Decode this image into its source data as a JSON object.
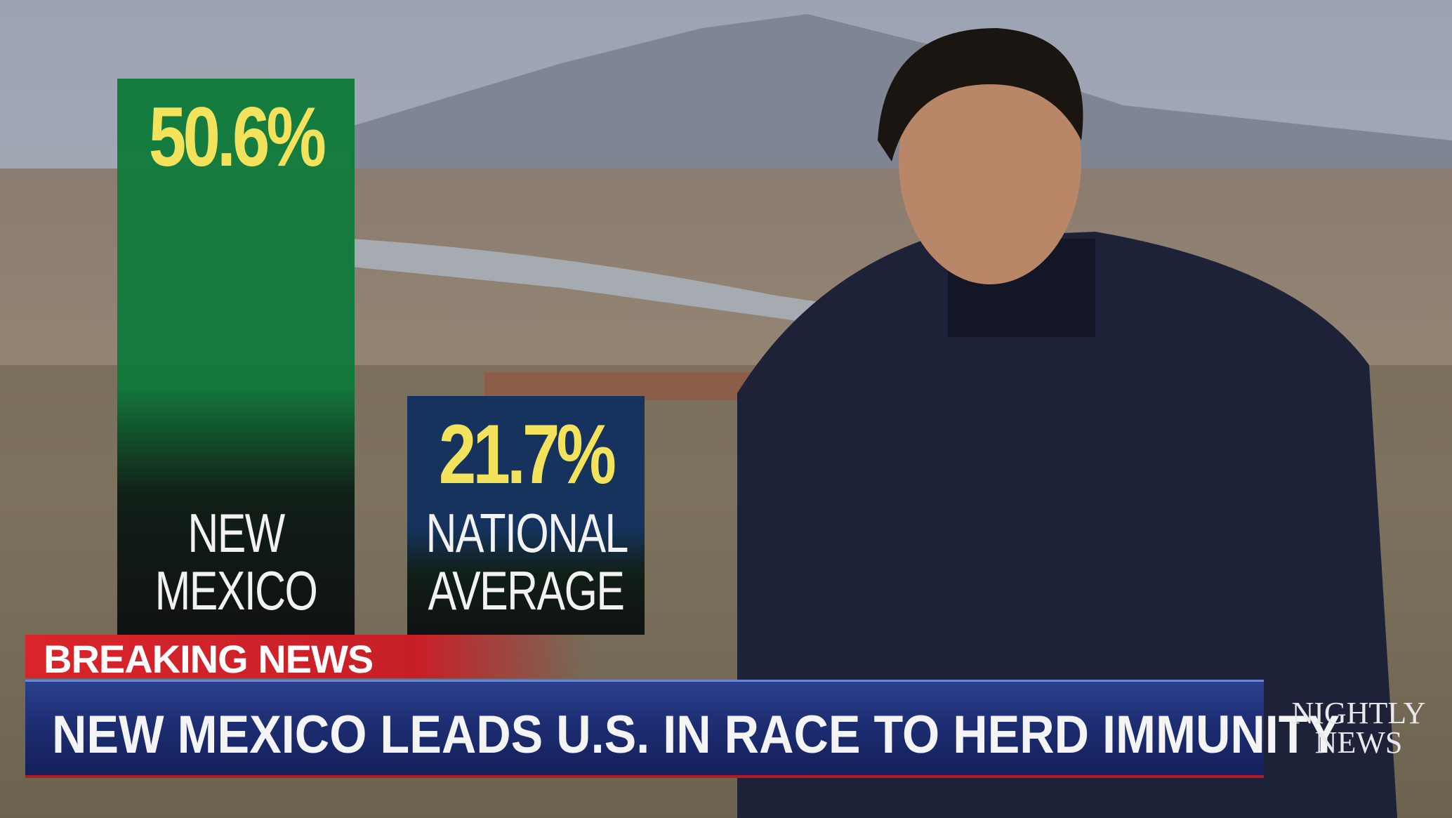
{
  "chart_data": {
    "type": "bar",
    "categories": [
      "NEW MEXICO",
      "NATIONAL AVERAGE"
    ],
    "values": [
      50.6,
      21.7
    ],
    "value_labels": [
      "50.6%",
      "21.7%"
    ],
    "colors": [
      "#0e7a3a",
      "#10305e"
    ]
  },
  "banner": {
    "label": "BREAKING NEWS",
    "headline": "NEW MEXICO LEADS U.S. IN RACE TO HERD IMMUNITY"
  },
  "logo": {
    "line1": "NIGHTLY",
    "line2": "NEWS"
  }
}
